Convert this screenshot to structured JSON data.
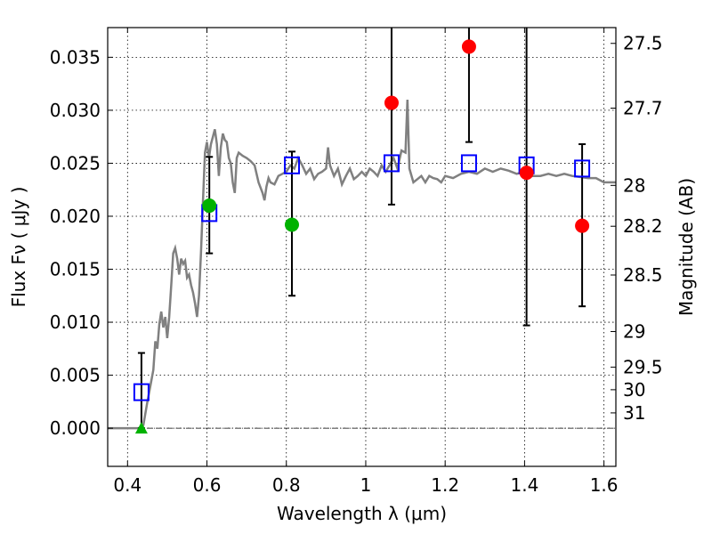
{
  "chart_data": {
    "type": "scatter",
    "xlabel": "Wavelength  λ (μm)",
    "ylabel": "Flux  Fν  ( μJy )",
    "ylabel_right": "Magnitude (AB)",
    "xlim": [
      0.35,
      1.63
    ],
    "ylim": [
      -0.0036,
      0.0378
    ],
    "grid": true,
    "x_ticks": [
      {
        "value": 0.4,
        "label": "0.4"
      },
      {
        "value": 0.6,
        "label": "0.6"
      },
      {
        "value": 0.8,
        "label": "0.8"
      },
      {
        "value": 1.0,
        "label": "1"
      },
      {
        "value": 1.2,
        "label": "1.2"
      },
      {
        "value": 1.4,
        "label": "1.4"
      },
      {
        "value": 1.6,
        "label": "1.6"
      }
    ],
    "y_ticks": [
      {
        "value": 0.0,
        "label": "0.000"
      },
      {
        "value": 0.005,
        "label": "0.005"
      },
      {
        "value": 0.01,
        "label": "0.010"
      },
      {
        "value": 0.015,
        "label": "0.015"
      },
      {
        "value": 0.02,
        "label": "0.020"
      },
      {
        "value": 0.025,
        "label": "0.025"
      },
      {
        "value": 0.03,
        "label": "0.030"
      },
      {
        "value": 0.035,
        "label": "0.035"
      }
    ],
    "right_ticks": [
      {
        "label": "27.5",
        "mag": 27.5
      },
      {
        "label": "27.7",
        "mag": 27.7
      },
      {
        "label": "28",
        "mag": 28.0
      },
      {
        "label": "28.2",
        "mag": 28.2
      },
      {
        "label": "28.5",
        "mag": 28.5
      },
      {
        "label": "29",
        "mag": 29.0
      },
      {
        "label": "29.5",
        "mag": 29.5
      },
      {
        "label": "30",
        "mag": 30.0
      },
      {
        "label": "31",
        "mag": 31.0
      }
    ],
    "colors": {
      "model": "#808080",
      "observed": "#ff0000",
      "detected": "#00b200",
      "model_band": "#0000ff",
      "errorbar": "#000000"
    },
    "model_spectrum": [
      [
        0.35,
        0.0
      ],
      [
        0.42,
        0.0
      ],
      [
        0.43,
        0.0
      ],
      [
        0.44,
        0.0003
      ],
      [
        0.45,
        0.0025
      ],
      [
        0.46,
        0.0045
      ],
      [
        0.465,
        0.0055
      ],
      [
        0.47,
        0.0082
      ],
      [
        0.475,
        0.0075
      ],
      [
        0.48,
        0.0098
      ],
      [
        0.485,
        0.011
      ],
      [
        0.49,
        0.0095
      ],
      [
        0.495,
        0.0105
      ],
      [
        0.5,
        0.0085
      ],
      [
        0.505,
        0.0105
      ],
      [
        0.51,
        0.0135
      ],
      [
        0.515,
        0.0165
      ],
      [
        0.52,
        0.017
      ],
      [
        0.525,
        0.016
      ],
      [
        0.53,
        0.0145
      ],
      [
        0.535,
        0.016
      ],
      [
        0.54,
        0.0155
      ],
      [
        0.545,
        0.0158
      ],
      [
        0.55,
        0.0142
      ],
      [
        0.555,
        0.0145
      ],
      [
        0.56,
        0.0135
      ],
      [
        0.565,
        0.0128
      ],
      [
        0.57,
        0.0118
      ],
      [
        0.575,
        0.0105
      ],
      [
        0.58,
        0.0125
      ],
      [
        0.585,
        0.0165
      ],
      [
        0.59,
        0.0215
      ],
      [
        0.595,
        0.026
      ],
      [
        0.6,
        0.027
      ],
      [
        0.605,
        0.0255
      ],
      [
        0.61,
        0.0268
      ],
      [
        0.615,
        0.0275
      ],
      [
        0.62,
        0.0282
      ],
      [
        0.625,
        0.0268
      ],
      [
        0.63,
        0.0238
      ],
      [
        0.635,
        0.0265
      ],
      [
        0.64,
        0.0278
      ],
      [
        0.645,
        0.0272
      ],
      [
        0.65,
        0.027
      ],
      [
        0.655,
        0.0255
      ],
      [
        0.66,
        0.025
      ],
      [
        0.665,
        0.0232
      ],
      [
        0.67,
        0.0222
      ],
      [
        0.675,
        0.0255
      ],
      [
        0.68,
        0.026
      ],
      [
        0.69,
        0.0257
      ],
      [
        0.7,
        0.0255
      ],
      [
        0.71,
        0.0252
      ],
      [
        0.72,
        0.0248
      ],
      [
        0.73,
        0.0232
      ],
      [
        0.74,
        0.0222
      ],
      [
        0.745,
        0.0215
      ],
      [
        0.75,
        0.0228
      ],
      [
        0.755,
        0.0236
      ],
      [
        0.76,
        0.0232
      ],
      [
        0.77,
        0.023
      ],
      [
        0.78,
        0.0238
      ],
      [
        0.79,
        0.024
      ],
      [
        0.8,
        0.0242
      ],
      [
        0.81,
        0.0248
      ],
      [
        0.82,
        0.0245
      ],
      [
        0.83,
        0.0255
      ],
      [
        0.84,
        0.0248
      ],
      [
        0.85,
        0.024
      ],
      [
        0.86,
        0.0245
      ],
      [
        0.87,
        0.0235
      ],
      [
        0.88,
        0.024
      ],
      [
        0.89,
        0.0242
      ],
      [
        0.9,
        0.0245
      ],
      [
        0.905,
        0.0265
      ],
      [
        0.91,
        0.0248
      ],
      [
        0.92,
        0.0238
      ],
      [
        0.93,
        0.0245
      ],
      [
        0.94,
        0.023
      ],
      [
        0.95,
        0.0238
      ],
      [
        0.96,
        0.0245
      ],
      [
        0.97,
        0.0235
      ],
      [
        0.98,
        0.0238
      ],
      [
        0.99,
        0.0242
      ],
      [
        1.0,
        0.0238
      ],
      [
        1.01,
        0.0245
      ],
      [
        1.02,
        0.0242
      ],
      [
        1.03,
        0.0238
      ],
      [
        1.04,
        0.0248
      ],
      [
        1.05,
        0.0242
      ],
      [
        1.06,
        0.0248
      ],
      [
        1.07,
        0.0255
      ],
      [
        1.08,
        0.0245
      ],
      [
        1.09,
        0.0262
      ],
      [
        1.1,
        0.026
      ],
      [
        1.105,
        0.031
      ],
      [
        1.11,
        0.0245
      ],
      [
        1.12,
        0.0232
      ],
      [
        1.13,
        0.0235
      ],
      [
        1.14,
        0.0238
      ],
      [
        1.15,
        0.0232
      ],
      [
        1.16,
        0.0238
      ],
      [
        1.17,
        0.0236
      ],
      [
        1.18,
        0.0235
      ],
      [
        1.19,
        0.0232
      ],
      [
        1.2,
        0.0238
      ],
      [
        1.22,
        0.0236
      ],
      [
        1.24,
        0.024
      ],
      [
        1.26,
        0.0242
      ],
      [
        1.28,
        0.024
      ],
      [
        1.3,
        0.0245
      ],
      [
        1.32,
        0.0242
      ],
      [
        1.34,
        0.0245
      ],
      [
        1.36,
        0.0243
      ],
      [
        1.38,
        0.024
      ],
      [
        1.4,
        0.0242
      ],
      [
        1.42,
        0.0238
      ],
      [
        1.44,
        0.0238
      ],
      [
        1.46,
        0.024
      ],
      [
        1.48,
        0.0238
      ],
      [
        1.5,
        0.024
      ],
      [
        1.52,
        0.0238
      ],
      [
        1.54,
        0.0237
      ],
      [
        1.56,
        0.0236
      ],
      [
        1.58,
        0.0236
      ],
      [
        1.6,
        0.0232
      ],
      [
        1.63,
        0.0232
      ]
    ],
    "model_bands": [
      {
        "x": 0.435,
        "y": 0.0034
      },
      {
        "x": 0.606,
        "y": 0.0203
      },
      {
        "x": 0.814,
        "y": 0.0248
      },
      {
        "x": 1.065,
        "y": 0.025
      },
      {
        "x": 1.26,
        "y": 0.025
      },
      {
        "x": 1.405,
        "y": 0.0248
      },
      {
        "x": 1.545,
        "y": 0.0245
      }
    ],
    "errorbars": [
      {
        "x": 0.435,
        "low": 0.0,
        "high": 0.0071
      },
      {
        "x": 0.606,
        "low": 0.0165,
        "high": 0.0256
      },
      {
        "x": 0.814,
        "low": 0.0125,
        "high": 0.0261
      },
      {
        "x": 1.065,
        "low": 0.0211,
        "high": 0.0378
      },
      {
        "x": 1.26,
        "low": 0.027,
        "high": 0.0378
      },
      {
        "x": 1.405,
        "low": 0.0097,
        "high": 0.0378
      },
      {
        "x": 1.545,
        "low": 0.0115,
        "high": 0.0268
      }
    ],
    "detected_points": [
      {
        "x": 0.606,
        "y": 0.021
      },
      {
        "x": 0.814,
        "y": 0.0192
      }
    ],
    "observed_points": [
      {
        "x": 1.065,
        "y": 0.0307
      },
      {
        "x": 1.26,
        "y": 0.036
      },
      {
        "x": 1.405,
        "y": 0.0241
      },
      {
        "x": 1.545,
        "y": 0.0191
      }
    ],
    "upper_limit_points": [
      {
        "x": 0.435,
        "y": 0.0
      }
    ]
  }
}
